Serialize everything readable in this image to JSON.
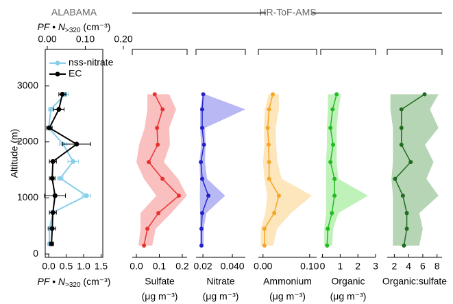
{
  "group_title": "HR-ToF-AMS",
  "y_axis": {
    "label": "Altitude (m)",
    "ylim": [
      -60,
      3650
    ],
    "yticks": [
      0,
      1000,
      2000,
      3000
    ]
  },
  "chart_data": [
    {
      "type": "profile",
      "title": "ALABAMA",
      "altitudes": [
        2850,
        2580,
        2250,
        1960,
        1650,
        1350,
        1040,
        740,
        455,
        180
      ],
      "series": [
        {
          "name": "nss-nitrate",
          "color": "#87ceeb",
          "values": [
            0.47,
            0.06,
            0.0,
            0.41,
            0.7,
            0.33,
            1.08,
            0.12,
            0.02,
            0.02
          ],
          "errors": [
            0.1,
            0.06,
            0.04,
            0.1,
            0.15,
            0.08,
            0.12,
            0.06,
            0.04,
            0.04
          ]
        },
        {
          "name": "EC",
          "color": "#000000",
          "values": [
            0.39,
            0.29,
            0.02,
            0.8,
            0.12,
            0.1,
            0.18,
            0.12,
            0.1,
            0.08
          ],
          "errors": [
            0.1,
            0.15,
            0.08,
            0.4,
            0.1,
            0.08,
            0.3,
            0.1,
            0.1,
            0.06
          ]
        }
      ],
      "xlim": [
        -0.1,
        1.55
      ],
      "xticks": [
        {
          "value": 0,
          "label": "0.0"
        },
        0.5,
        {
          "value": 1,
          "label": "1.0"
        },
        1.5
      ],
      "xlabel": {
        "main": "PF • N",
        "sub": ">320",
        "unit": " (cm⁻³)"
      },
      "x2lim": [
        0,
        0.2
      ],
      "x2ticks": [
        {
          "value": 0,
          "label": "0.00"
        },
        {
          "value": 0.1,
          "label": "0.10"
        },
        {
          "value": 0.2,
          "label": "0.20"
        }
      ],
      "x2label": {
        "main": "PF • N",
        "sub": ">320",
        "unit": " (cm⁻³)"
      },
      "legend": "upper left"
    },
    {
      "type": "profile-range",
      "xlabel": "Sulfate",
      "unit": "(μg m⁻³)",
      "color": "#e8312f",
      "fill": "#f8a9a9",
      "altitudes": [
        2850,
        2580,
        2250,
        1950,
        1640,
        1340,
        1040,
        730,
        450,
        150
      ],
      "values": [
        0.08,
        0.114,
        0.09,
        0.093,
        0.054,
        0.114,
        0.185,
        0.096,
        0.048,
        0.033
      ],
      "lower": [
        0.048,
        0.048,
        0.036,
        0.012,
        0.0,
        0.033,
        0.087,
        0.018,
        0.018,
        0.009
      ],
      "upper": [
        0.143,
        0.173,
        0.143,
        0.146,
        0.12,
        0.182,
        0.22,
        0.152,
        0.084,
        0.069
      ],
      "xlim": [
        -0.018,
        0.221
      ],
      "xticks": [
        {
          "value": 0,
          "label": "0.0"
        },
        0.1,
        0.2
      ]
    },
    {
      "type": "profile-range",
      "xlabel": "Nitrate",
      "unit": "(μg m⁻³)",
      "color": "#2222cc",
      "fill": "#a0a0f0",
      "altitudes": [
        2850,
        2580,
        2250,
        1950,
        1640,
        1340,
        1040,
        730,
        450,
        150
      ],
      "values": [
        0.0202,
        0.0195,
        0.0195,
        0.0207,
        0.0186,
        0.0195,
        0.0237,
        0.0195,
        0.019,
        0.019
      ],
      "lower": [
        0.0198,
        0.0181,
        0.0181,
        0.0188,
        0.0177,
        0.0181,
        0.0179,
        0.0181,
        0.0181,
        0.0181
      ],
      "upper": [
        0.0214,
        0.0488,
        0.0214,
        0.0218,
        0.0214,
        0.0228,
        0.0351,
        0.0223,
        0.0205,
        0.0205
      ],
      "xlim": [
        0.0153,
        0.0488
      ],
      "xticks": [
        0.02,
        {
          "value": 0.04,
          "label": "0.040"
        }
      ]
    },
    {
      "type": "profile-range",
      "xlabel": "Ammonium",
      "unit": "(μg m⁻³)",
      "color": "#f5a623",
      "fill": "#fcdca6",
      "altitudes": [
        2850,
        2580,
        2250,
        1950,
        1640,
        1340,
        1040,
        730,
        450,
        150
      ],
      "values": [
        0.021,
        0.013,
        0.01,
        0.012,
        0.013,
        0.013,
        0.034,
        0.024,
        0.003,
        0.003
      ],
      "lower": [
        0.012,
        0.004,
        0.002,
        0.003,
        0.0,
        0.003,
        0.009,
        0.005,
        -0.005,
        -0.005
      ],
      "upper": [
        0.034,
        0.034,
        0.027,
        0.028,
        0.031,
        0.04,
        0.105,
        0.06,
        0.03,
        0.022
      ],
      "xlim": [
        -0.01,
        0.115
      ],
      "xticks": [
        {
          "value": 0,
          "label": "0.00"
        },
        {
          "value": 0.1,
          "label": "0.10"
        }
      ]
    },
    {
      "type": "profile-range",
      "xlabel": "Organic",
      "unit": "(μg m⁻³)",
      "color": "#22bb22",
      "fill": "#a8eea2",
      "altitudes": [
        2850,
        2580,
        2250,
        1950,
        1640,
        1340,
        1040,
        730,
        450,
        150
      ],
      "values": [
        0.8,
        0.57,
        0.45,
        0.6,
        0.45,
        0.68,
        0.68,
        0.53,
        0.3,
        0.26
      ],
      "lower": [
        0.3,
        0.3,
        0.25,
        0.25,
        0.2,
        0.2,
        0.2,
        0.2,
        0.1,
        0.1
      ],
      "upper": [
        1.05,
        0.9,
        0.8,
        0.8,
        0.8,
        0.9,
        2.57,
        0.9,
        0.6,
        0.55
      ],
      "xlim": [
        -0.1,
        3.0
      ],
      "xticks": [
        0,
        1,
        2,
        3
      ]
    },
    {
      "type": "profile-range",
      "xlabel": "Organic:sulfate",
      "color": "#1f6b1f",
      "fill": "#9cc79c",
      "altitudes": [
        2850,
        2580,
        2250,
        1950,
        1640,
        1340,
        1040,
        730,
        450,
        150
      ],
      "values": [
        6.25,
        3.0,
        3.0,
        3.0,
        4.3,
        2.1,
        3.2,
        3.75,
        3.75,
        3.35
      ],
      "lower": [
        1.45,
        1.45,
        1.8,
        1.8,
        1.8,
        1.6,
        1.8,
        1.8,
        1.8,
        1.8
      ],
      "upper": [
        8.2,
        7.0,
        8.2,
        6.3,
        7.5,
        6.5,
        8.2,
        5.5,
        6.0,
        5.5
      ],
      "xlim": [
        1,
        8.7
      ],
      "xticks": [
        2,
        4,
        6,
        8
      ]
    }
  ]
}
